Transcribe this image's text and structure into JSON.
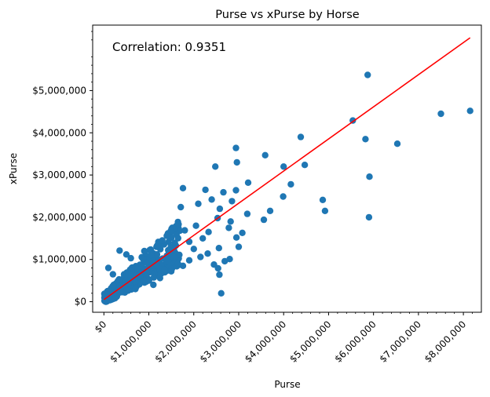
{
  "chart_data": {
    "type": "scatter",
    "title": "Purse vs xPurse by Horse",
    "xlabel": "Purse",
    "ylabel": "xPurse",
    "annotation": "Correlation: 0.9351",
    "xlim": [
      -250000,
      8400000
    ],
    "ylim": [
      -250000,
      6550000
    ],
    "x_ticks": [
      0,
      1000000,
      2000000,
      3000000,
      4000000,
      5000000,
      6000000,
      7000000,
      8000000
    ],
    "x_tick_labels": [
      "$0",
      "$1,000,000",
      "$2,000,000",
      "$3,000,000",
      "$4,000,000",
      "$5,000,000",
      "$6,000,000",
      "$7,000,000",
      "$8,000,000"
    ],
    "y_ticks": [
      0,
      1000000,
      2000000,
      3000000,
      4000000,
      5000000
    ],
    "y_tick_labels": [
      "$0",
      "$1,000,000",
      "$2,000,000",
      "$3,000,000",
      "$4,000,000",
      "$5,000,000"
    ],
    "colors": {
      "points": "#1f77b4",
      "fit_line": "#ff0000"
    },
    "fit_line": {
      "x": [
        0,
        8150000
      ],
      "y": [
        50000,
        6250000
      ]
    },
    "points": [
      [
        5870000,
        5370000
      ],
      [
        8150000,
        4520000
      ],
      [
        7500000,
        4450000
      ],
      [
        5540000,
        4290000
      ],
      [
        5820000,
        3850000
      ],
      [
        6530000,
        3740000
      ],
      [
        4380000,
        3900000
      ],
      [
        3590000,
        3470000
      ],
      [
        2940000,
        3640000
      ],
      [
        2960000,
        3300000
      ],
      [
        2480000,
        3200000
      ],
      [
        4000000,
        3200000
      ],
      [
        4470000,
        3240000
      ],
      [
        5910000,
        2960000
      ],
      [
        3210000,
        2820000
      ],
      [
        4160000,
        2780000
      ],
      [
        1760000,
        2690000
      ],
      [
        2260000,
        2650000
      ],
      [
        2660000,
        2590000
      ],
      [
        2940000,
        2640000
      ],
      [
        3990000,
        2490000
      ],
      [
        4870000,
        2410000
      ],
      [
        4920000,
        2150000
      ],
      [
        5900000,
        2000000
      ],
      [
        3700000,
        2150000
      ],
      [
        3190000,
        2080000
      ],
      [
        3560000,
        1940000
      ],
      [
        2400000,
        2420000
      ],
      [
        2850000,
        2380000
      ],
      [
        2580000,
        2200000
      ],
      [
        2100000,
        2320000
      ],
      [
        1710000,
        2240000
      ],
      [
        2530000,
        1980000
      ],
      [
        2820000,
        1900000
      ],
      [
        2780000,
        1750000
      ],
      [
        2050000,
        1800000
      ],
      [
        2330000,
        1650000
      ],
      [
        3080000,
        1630000
      ],
      [
        2950000,
        1520000
      ],
      [
        3000000,
        1300000
      ],
      [
        2560000,
        1270000
      ],
      [
        2310000,
        1140000
      ],
      [
        2150000,
        1060000
      ],
      [
        2800000,
        1010000
      ],
      [
        2450000,
        880000
      ],
      [
        2690000,
        960000
      ],
      [
        2540000,
        790000
      ],
      [
        2570000,
        640000
      ],
      [
        2610000,
        200000
      ],
      [
        1900000,
        980000
      ],
      [
        1760000,
        850000
      ],
      [
        1500000,
        720000
      ],
      [
        1250000,
        560000
      ],
      [
        1100000,
        400000
      ],
      [
        700000,
        300000
      ],
      [
        1680000,
        1110000
      ],
      [
        1400000,
        1560000
      ],
      [
        1900000,
        1420000
      ],
      [
        1800000,
        1690000
      ],
      [
        1600000,
        1330000
      ],
      [
        1300000,
        1450000
      ],
      [
        600000,
        1030000
      ],
      [
        350000,
        1210000
      ],
      [
        500000,
        1120000
      ],
      [
        900000,
        1200000
      ],
      [
        1200000,
        1350000
      ],
      [
        1050000,
        1100000
      ],
      [
        100000,
        800000
      ],
      [
        200000,
        650000
      ],
      [
        800000,
        600000
      ],
      [
        1000000,
        500000
      ],
      [
        1400000,
        950000
      ],
      [
        1550000,
        1050000
      ],
      [
        1650000,
        900000
      ],
      [
        2000000,
        1250000
      ],
      [
        2200000,
        1500000
      ]
    ]
  }
}
